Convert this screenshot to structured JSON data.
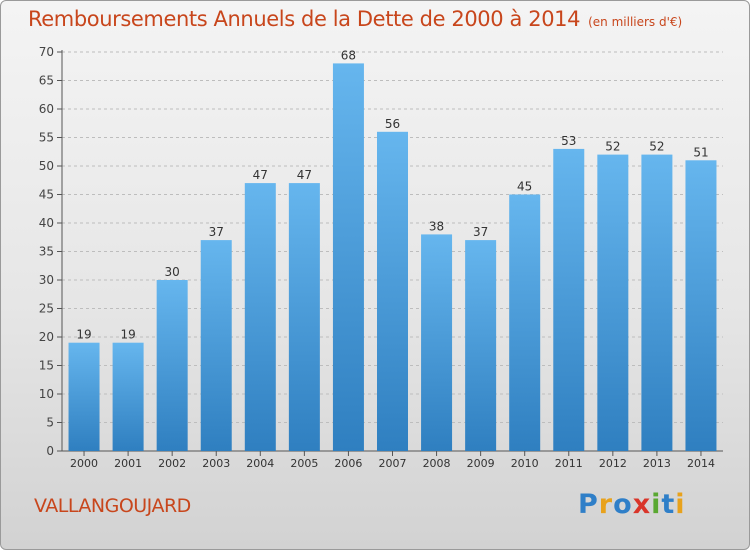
{
  "chart_data": {
    "type": "bar",
    "title": "Remboursements Annuels de la Dette de 2000 à 2014",
    "unit_label": "(en milliers d'€)",
    "categories": [
      "2000",
      "2001",
      "2002",
      "2003",
      "2004",
      "2005",
      "2006",
      "2007",
      "2008",
      "2009",
      "2010",
      "2011",
      "2012",
      "2013",
      "2014"
    ],
    "values": [
      19,
      19,
      30,
      37,
      47,
      47,
      68,
      56,
      38,
      37,
      45,
      53,
      52,
      52,
      51
    ],
    "ylim": [
      0,
      70
    ],
    "yticks": [
      0,
      5,
      10,
      15,
      20,
      25,
      30,
      35,
      40,
      45,
      50,
      55,
      60,
      65,
      70
    ],
    "xlabel": "",
    "ylabel": "",
    "grid": true
  },
  "commune": "VALLANGOUJARD",
  "logo": {
    "letters": [
      "P",
      "r",
      "o",
      "x",
      "i",
      "t",
      "i"
    ],
    "colors": [
      "#2f7fc8",
      "#e8a21c",
      "#2f7fc8",
      "#d9352a",
      "#5aa832",
      "#2f7fc8",
      "#e8a21c"
    ]
  },
  "colors": {
    "bar": "#4a9ee0",
    "bar_light": "#66b6ee",
    "bar_dark": "#2f7fc0",
    "title": "#c8461c",
    "grid": "#bdbdbd"
  }
}
